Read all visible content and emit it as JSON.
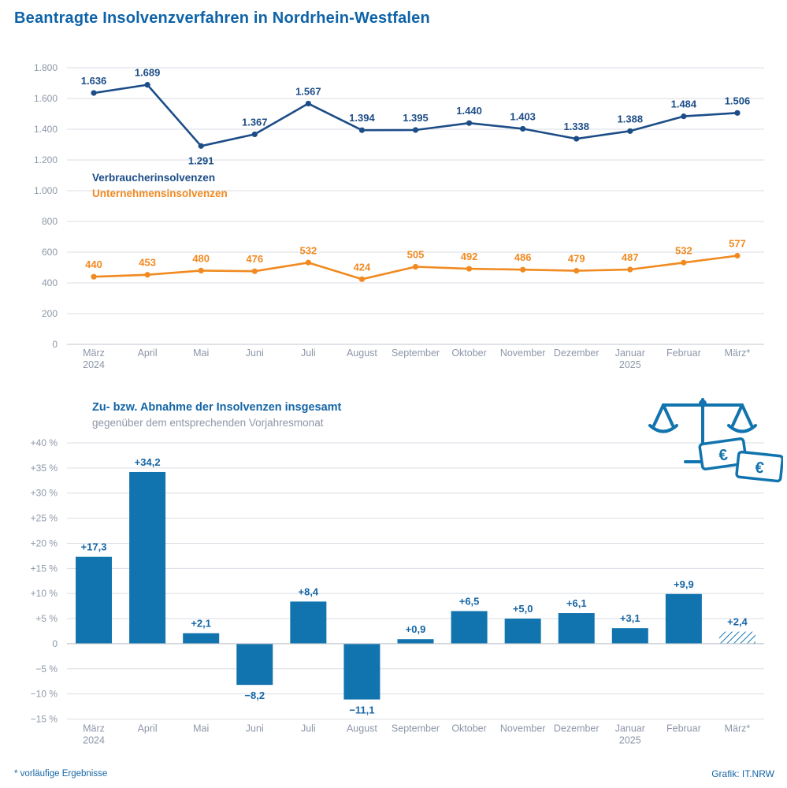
{
  "page": {
    "title": "Beantragte Insolvenzverfahren in Nordrhein-Westfalen",
    "footnote": "* vorläufige Ergebnisse",
    "credit": "Grafik: IT.NRW"
  },
  "colors": {
    "title": "#0e63a8",
    "consumer": "#1c4d87",
    "company": "#f08a21",
    "bar": "#1274ae",
    "bar_label": "#1566a6",
    "axis_text": "#8d97a8",
    "grid": "#dadee4",
    "zero_line": "#c0c6cf"
  },
  "chart_data": [
    {
      "type": "line",
      "categories": [
        [
          "März",
          "2024"
        ],
        [
          "April"
        ],
        [
          "Mai"
        ],
        [
          "Juni"
        ],
        [
          "Juli"
        ],
        [
          "August"
        ],
        [
          "September"
        ],
        [
          "Oktober"
        ],
        [
          "November"
        ],
        [
          "Dezember"
        ],
        [
          "Januar",
          "2025"
        ],
        [
          "Februar"
        ],
        [
          "März*"
        ]
      ],
      "series": [
        {
          "name": "Verbraucherinsolvenzen",
          "color_key": "consumer",
          "values": [
            1636,
            1689,
            1291,
            1367,
            1567,
            1394,
            1395,
            1440,
            1403,
            1338,
            1388,
            1484,
            1506
          ],
          "labels": [
            "1.636",
            "1.689",
            "1.291",
            "1.367",
            "1.567",
            "1.394",
            "1.395",
            "1.440",
            "1.403",
            "1.338",
            "1.388",
            "1.484",
            "1.506"
          ],
          "label_below": [
            2
          ]
        },
        {
          "name": "Unternehmensinsolvenzen",
          "color_key": "company",
          "values": [
            440,
            453,
            480,
            476,
            532,
            424,
            505,
            492,
            486,
            479,
            487,
            532,
            577
          ],
          "labels": [
            "440",
            "453",
            "480",
            "476",
            "532",
            "424",
            "505",
            "492",
            "486",
            "479",
            "487",
            "532",
            "577"
          ],
          "label_below": []
        }
      ],
      "ylim": [
        0,
        1800
      ],
      "ytick_step": 200,
      "ytick_labels": [
        "0",
        "200",
        "400",
        "600",
        "800",
        "1.000",
        "1.200",
        "1.400",
        "1.600",
        "1.800"
      ],
      "grid": true,
      "legend_position": "inside-left"
    },
    {
      "type": "bar",
      "title": "Zu- bzw. Abnahme der Insolvenzen insgesamt",
      "subtitle": "gegenüber dem entsprechenden Vorjahresmonat",
      "categories": [
        [
          "März",
          "2024"
        ],
        [
          "April"
        ],
        [
          "Mai"
        ],
        [
          "Juni"
        ],
        [
          "Juli"
        ],
        [
          "August"
        ],
        [
          "September"
        ],
        [
          "Oktober"
        ],
        [
          "November"
        ],
        [
          "Dezember"
        ],
        [
          "Januar",
          "2025"
        ],
        [
          "Februar"
        ],
        [
          "März*"
        ]
      ],
      "values": [
        17.3,
        34.2,
        2.1,
        -8.2,
        8.4,
        -11.1,
        0.9,
        6.5,
        5.0,
        6.1,
        3.1,
        9.9,
        2.4
      ],
      "labels": [
        "+17,3",
        "+34,2",
        "+2,1",
        "−8,2",
        "+8,4",
        "−11,1",
        "+0,9",
        "+6,5",
        "+5,0",
        "+6,1",
        "+3,1",
        "+9,9",
        "+2,4"
      ],
      "hatched": [
        12
      ],
      "ylim": [
        -15,
        40
      ],
      "ytick_step": 5,
      "ytick_labels": [
        "−15 %",
        "−10 %",
        "−5 %",
        "0",
        "+5 %",
        "+10 %",
        "+15 %",
        "+20 %",
        "+25 %",
        "+30 %",
        "+35 %",
        "+40 %"
      ],
      "grid": true
    }
  ],
  "icon": {
    "name": "scales-with-euro-notes",
    "euro_symbol": "€"
  }
}
